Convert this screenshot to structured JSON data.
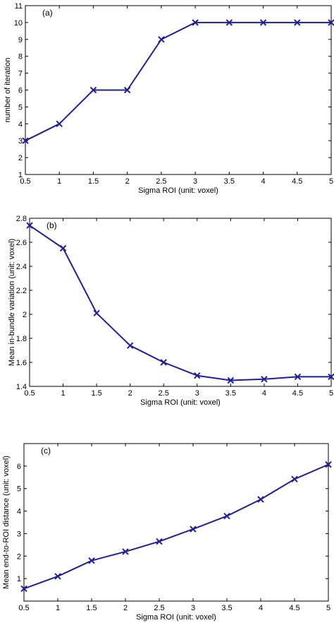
{
  "chart_data": [
    {
      "type": "line",
      "panel_label": "(a)",
      "xlabel": "Sigma ROI (unit: voxel)",
      "ylabel": "number of iteration",
      "x": [
        0.5,
        1,
        1.5,
        2,
        2.5,
        3,
        3.5,
        4,
        4.5,
        5
      ],
      "values": [
        3,
        4,
        6,
        6,
        9,
        10,
        10,
        10,
        10,
        10
      ],
      "xlim": [
        0.5,
        5
      ],
      "ylim": [
        1,
        11
      ],
      "xticks": [
        0.5,
        1,
        1.5,
        2,
        2.5,
        3,
        3.5,
        4,
        4.5,
        5
      ],
      "yticks": [
        1,
        2,
        3,
        4,
        5,
        6,
        7,
        8,
        9,
        10,
        11
      ],
      "marker": "x",
      "line_color": "#1f1f9a",
      "grid": false
    },
    {
      "type": "line",
      "panel_label": "(b)",
      "xlabel": "Sigma ROI (unit: voxel)",
      "ylabel": "Mean in-bundle variation (unit: voxel)",
      "x": [
        0.5,
        1,
        1.5,
        2,
        2.5,
        3,
        3.5,
        4,
        4.5,
        5
      ],
      "values": [
        2.74,
        2.55,
        2.01,
        1.74,
        1.6,
        1.49,
        1.45,
        1.46,
        1.48,
        1.48
      ],
      "xlim": [
        0.5,
        5
      ],
      "ylim": [
        1.4,
        2.8
      ],
      "xticks": [
        0.5,
        1,
        1.5,
        2,
        2.5,
        3,
        3.5,
        4,
        4.5,
        5
      ],
      "yticks": [
        1.4,
        1.6,
        1.8,
        2,
        2.2,
        2.4,
        2.6,
        2.8
      ],
      "marker": "x",
      "line_color": "#1f1f9a",
      "grid": false
    },
    {
      "type": "line",
      "panel_label": "(c)",
      "xlabel": "Sigma ROI (unit: voxel)",
      "ylabel": "Mean end-to-ROI distance (unit: voxel)",
      "x": [
        0.5,
        1,
        1.5,
        2,
        2.5,
        3,
        3.5,
        4,
        4.5,
        5
      ],
      "values": [
        0.55,
        1.1,
        1.8,
        2.2,
        2.65,
        3.2,
        3.78,
        4.52,
        5.42,
        6.07
      ],
      "xlim": [
        0.5,
        5
      ],
      "ylim": [
        0,
        7
      ],
      "xticks": [
        0.5,
        1,
        1.5,
        2,
        2.5,
        3,
        3.5,
        4,
        4.5,
        5
      ],
      "yticks": [
        1,
        2,
        3,
        4,
        5,
        6
      ],
      "marker": "x",
      "line_color": "#1f1f9a",
      "grid": false
    }
  ]
}
